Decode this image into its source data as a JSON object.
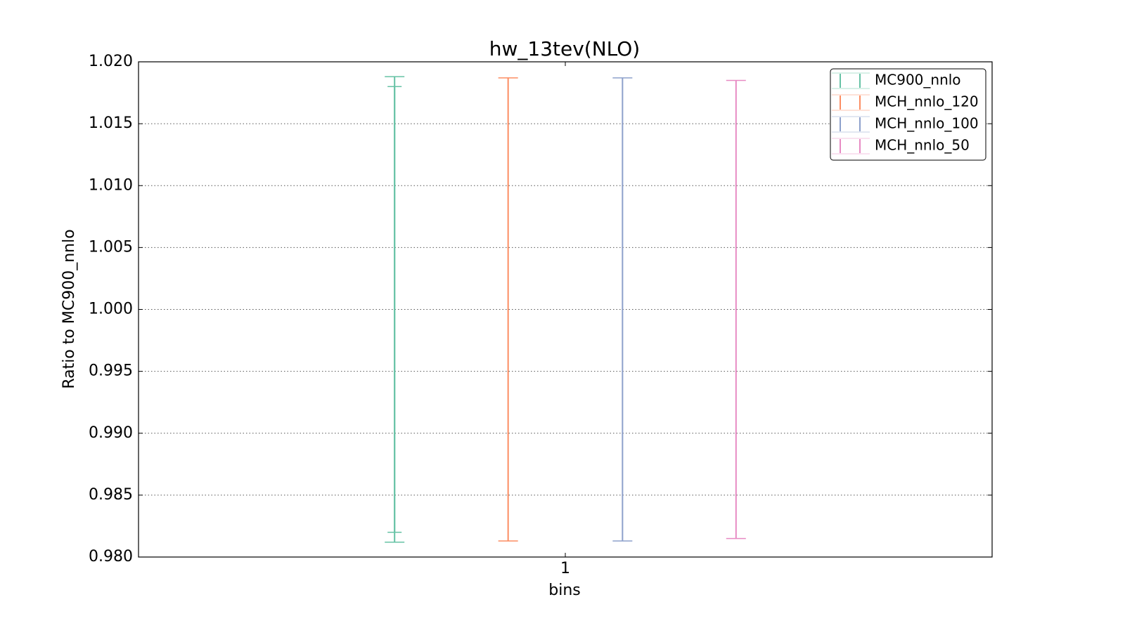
{
  "chart_data": {
    "type": "errorbar",
    "title": "hw_13tev(NLO)",
    "x_label": "bins",
    "y_label": "Ratio to MC900_nnlo",
    "xlim": [
      0.5,
      1.5
    ],
    "xticks": [
      1
    ],
    "ylim": [
      0.98,
      1.02
    ],
    "yticks": [
      {
        "value": 0.98,
        "label": "0.980"
      },
      {
        "value": 0.985,
        "label": "0.985"
      },
      {
        "value": 0.99,
        "label": "0.990"
      },
      {
        "value": 0.995,
        "label": "0.995"
      },
      {
        "value": 1.0,
        "label": "1.000"
      },
      {
        "value": 1.005,
        "label": "1.005"
      },
      {
        "value": 1.01,
        "label": "1.010"
      },
      {
        "value": 1.015,
        "label": "1.015"
      },
      {
        "value": 1.02,
        "label": "1.020"
      }
    ],
    "grid": true,
    "legend": "upper right",
    "series": [
      {
        "name": "MC900_nnlo",
        "color": "#66c2a5",
        "x": [
          0.8
        ],
        "values": [
          1.0
        ],
        "errors": [
          0.0188
        ],
        "inner_errors": [
          0.018
        ]
      },
      {
        "name": "MCH_nnlo_120",
        "color": "#fc8d62",
        "x": [
          0.933
        ],
        "values": [
          1.0
        ],
        "errors": [
          0.0187
        ]
      },
      {
        "name": "MCH_nnlo_100",
        "color": "#8da0cb",
        "x": [
          1.067
        ],
        "values": [
          1.0
        ],
        "errors": [
          0.0187
        ]
      },
      {
        "name": "MCH_nnlo_50",
        "color": "#e78ac3",
        "x": [
          1.2
        ],
        "values": [
          1.0
        ],
        "errors": [
          0.0185
        ]
      }
    ]
  }
}
